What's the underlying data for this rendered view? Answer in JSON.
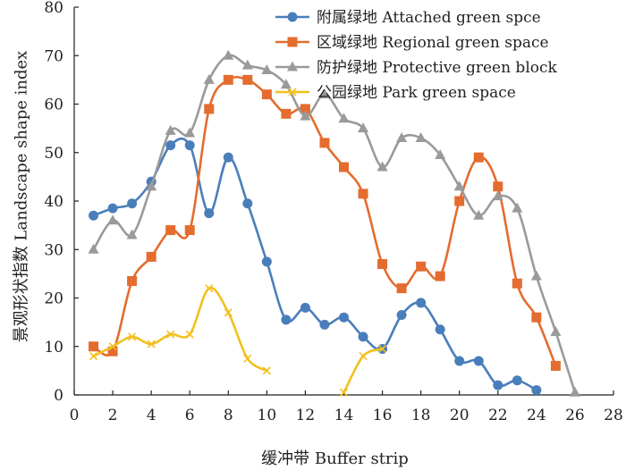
{
  "chart_data": {
    "type": "line",
    "title": "",
    "xlabel": "缓冲带 Buffer strip",
    "ylabel": "景观形状指数 Landscape shape index",
    "xlim": [
      0,
      28
    ],
    "ylim": [
      0,
      80
    ],
    "xticks": [
      0,
      2,
      4,
      6,
      8,
      10,
      12,
      14,
      16,
      18,
      20,
      22,
      24,
      26,
      28
    ],
    "yticks": [
      0,
      10,
      20,
      30,
      40,
      50,
      60,
      70,
      80
    ],
    "grid": false,
    "legend_position": "top-right",
    "series": [
      {
        "name": "附属绿地 Attached  green spce",
        "color": "#4a7ebb",
        "marker": "circle",
        "smooth": true,
        "points": [
          [
            1,
            37
          ],
          [
            2,
            38.5
          ],
          [
            3,
            39.5
          ],
          [
            4,
            44
          ],
          [
            5,
            51.5
          ],
          [
            6,
            51.5
          ],
          [
            7,
            37.5
          ],
          [
            8,
            49
          ],
          [
            9,
            39.5
          ],
          [
            10,
            27.5
          ],
          [
            11,
            15.5
          ],
          [
            12,
            18
          ],
          [
            13,
            14.5
          ],
          [
            14,
            16
          ],
          [
            15,
            12
          ],
          [
            16,
            9.5
          ],
          [
            17,
            16.5
          ],
          [
            18,
            19
          ],
          [
            19,
            13.5
          ],
          [
            20,
            7
          ],
          [
            21,
            7
          ],
          [
            22,
            2
          ],
          [
            23,
            3
          ],
          [
            24,
            1
          ]
        ]
      },
      {
        "name": "区域绿地 Regional green space",
        "color": "#e46c2f",
        "marker": "square",
        "smooth": true,
        "points": [
          [
            1,
            10
          ],
          [
            2,
            9
          ],
          [
            3,
            23.5
          ],
          [
            4,
            28.5
          ],
          [
            5,
            34
          ],
          [
            6,
            34
          ],
          [
            7,
            59
          ],
          [
            8,
            65
          ],
          [
            9,
            65
          ],
          [
            10,
            62
          ],
          [
            11,
            58
          ],
          [
            12,
            59
          ],
          [
            13,
            52
          ],
          [
            14,
            47
          ],
          [
            15,
            41.5
          ],
          [
            16,
            27
          ],
          [
            17,
            22
          ],
          [
            18,
            26.5
          ],
          [
            19,
            24.5
          ],
          [
            20,
            40
          ],
          [
            21,
            49
          ],
          [
            22,
            43
          ],
          [
            23,
            23
          ],
          [
            24,
            16
          ],
          [
            25,
            6
          ]
        ]
      },
      {
        "name": "防护绿地 Protective green block",
        "color": "#9a9a9a",
        "marker": "triangle",
        "smooth": true,
        "points": [
          [
            1,
            30
          ],
          [
            2,
            36
          ],
          [
            3,
            33
          ],
          [
            4,
            43
          ],
          [
            5,
            54.5
          ],
          [
            6,
            54
          ],
          [
            7,
            65
          ],
          [
            8,
            70
          ],
          [
            9,
            68
          ],
          [
            10,
            67
          ],
          [
            11,
            64
          ],
          [
            12,
            57.5
          ],
          [
            13,
            62
          ],
          [
            14,
            57
          ],
          [
            15,
            55
          ],
          [
            16,
            47
          ],
          [
            17,
            53
          ],
          [
            18,
            53
          ],
          [
            19,
            49.5
          ],
          [
            20,
            43
          ],
          [
            21,
            37
          ],
          [
            22,
            41
          ],
          [
            23,
            38.5
          ],
          [
            24,
            24.5
          ],
          [
            25,
            13
          ],
          [
            26,
            0.5
          ]
        ]
      },
      {
        "name": "公园绿地 Park green space",
        "color": "#f2c01e",
        "marker": "cross",
        "smooth": true,
        "segments": [
          [
            [
              1,
              8
            ],
            [
              2,
              10
            ],
            [
              3,
              12
            ],
            [
              4,
              10.5
            ],
            [
              5,
              12.5
            ],
            [
              6,
              12.5
            ],
            [
              7,
              22
            ],
            [
              8,
              17
            ],
            [
              9,
              7.5
            ],
            [
              10,
              5
            ]
          ],
          [
            [
              14,
              0.5
            ],
            [
              15,
              8
            ],
            [
              16,
              9.5
            ]
          ]
        ]
      }
    ]
  }
}
